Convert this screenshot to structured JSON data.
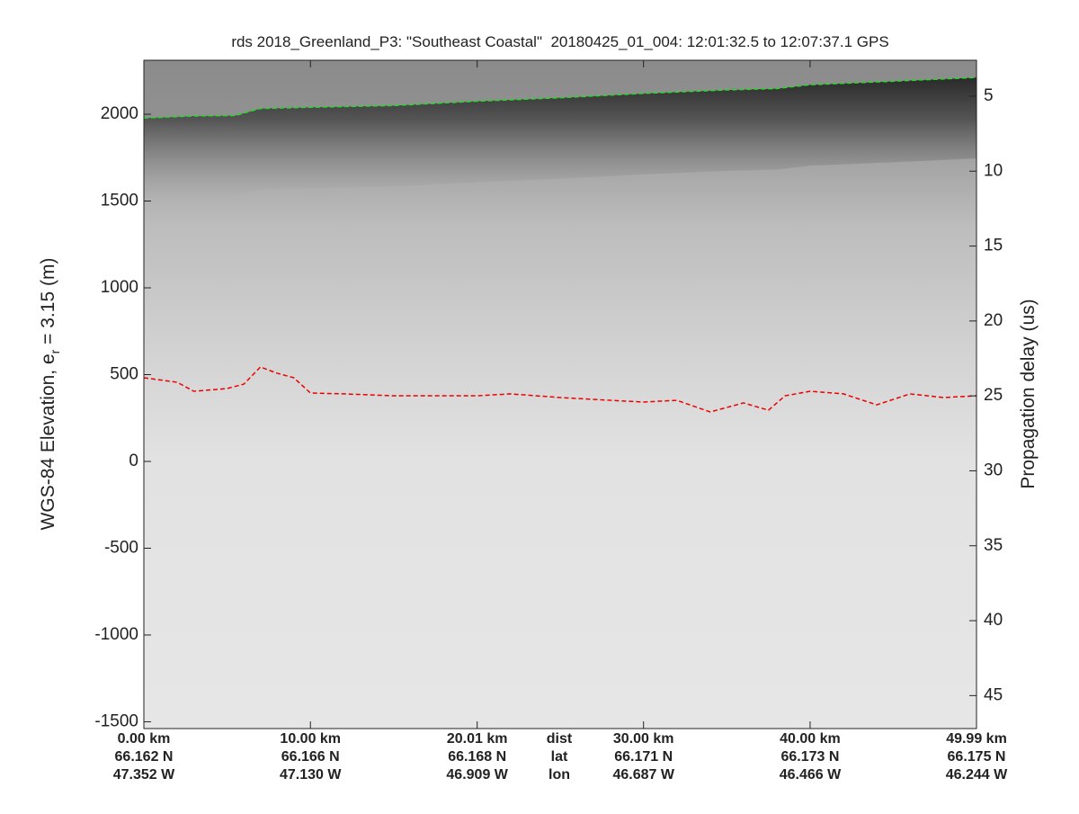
{
  "chart_data": {
    "type": "echogram",
    "title": "rds 2018_Greenland_P3: \"Southeast Coastal\"  20180425_01_004: 12:01:32.5 to 12:07:37.1 GPS",
    "ylabel": {
      "main": "WGS-84 Elevation, e",
      "subscript": "r",
      "rest": " = 3.15 (m)"
    },
    "y2label": "Propagation delay (us)",
    "xlim": [
      0,
      49.99
    ],
    "xticks": [
      {
        "value": 0,
        "label": "0.00 km"
      },
      {
        "value": 10,
        "label": "10.00 km"
      },
      {
        "value": 20.01,
        "label": "20.01 km"
      },
      {
        "value": 30,
        "label": "30.00 km"
      },
      {
        "value": 40,
        "label": "40.00 km"
      },
      {
        "value": 49.99,
        "label": "49.99 km"
      }
    ],
    "lat_labels": [
      "66.162 N",
      "66.166 N",
      "66.168 N",
      "66.171 N",
      "66.173 N",
      "66.175 N"
    ],
    "lon_labels": [
      "47.352 W",
      "47.130 W",
      "46.909 W",
      "46.687 W",
      "46.466 W",
      "46.244 W"
    ],
    "row_names": [
      "dist",
      "lat",
      "lon"
    ],
    "ylim": [
      -1539,
      2311
    ],
    "yticks": [
      -1500,
      -1000,
      -500,
      0,
      500,
      1000,
      1500,
      2000
    ],
    "y2lim": [
      47.2,
      2.6
    ],
    "y2ticks": [
      5,
      10,
      15,
      20,
      25,
      30,
      35,
      40,
      45
    ],
    "series": [
      {
        "name": "surface",
        "color": "#22dd22",
        "x": [
          0,
          3,
          5.5,
          7,
          10,
          15,
          20,
          25,
          30,
          35,
          38,
          40,
          45,
          49.99
        ],
        "values": [
          1978,
          1990,
          1993,
          2033,
          2040,
          2050,
          2075,
          2095,
          2120,
          2140,
          2148,
          2170,
          2190,
          2212
        ]
      },
      {
        "name": "bottom",
        "color": "#ee0000",
        "x": [
          0,
          2,
          3,
          5,
          6,
          7,
          8,
          9,
          10,
          12,
          15,
          20,
          22,
          25,
          28,
          30,
          32,
          34,
          36,
          37.5,
          38.5,
          40,
          42,
          44,
          46,
          48,
          49.99
        ],
        "values": [
          482,
          456,
          404,
          420,
          445,
          544,
          508,
          482,
          394,
          389,
          378,
          378,
          389,
          368,
          352,
          342,
          352,
          285,
          337,
          295,
          378,
          404,
          389,
          326,
          389,
          368,
          378
        ]
      }
    ]
  }
}
